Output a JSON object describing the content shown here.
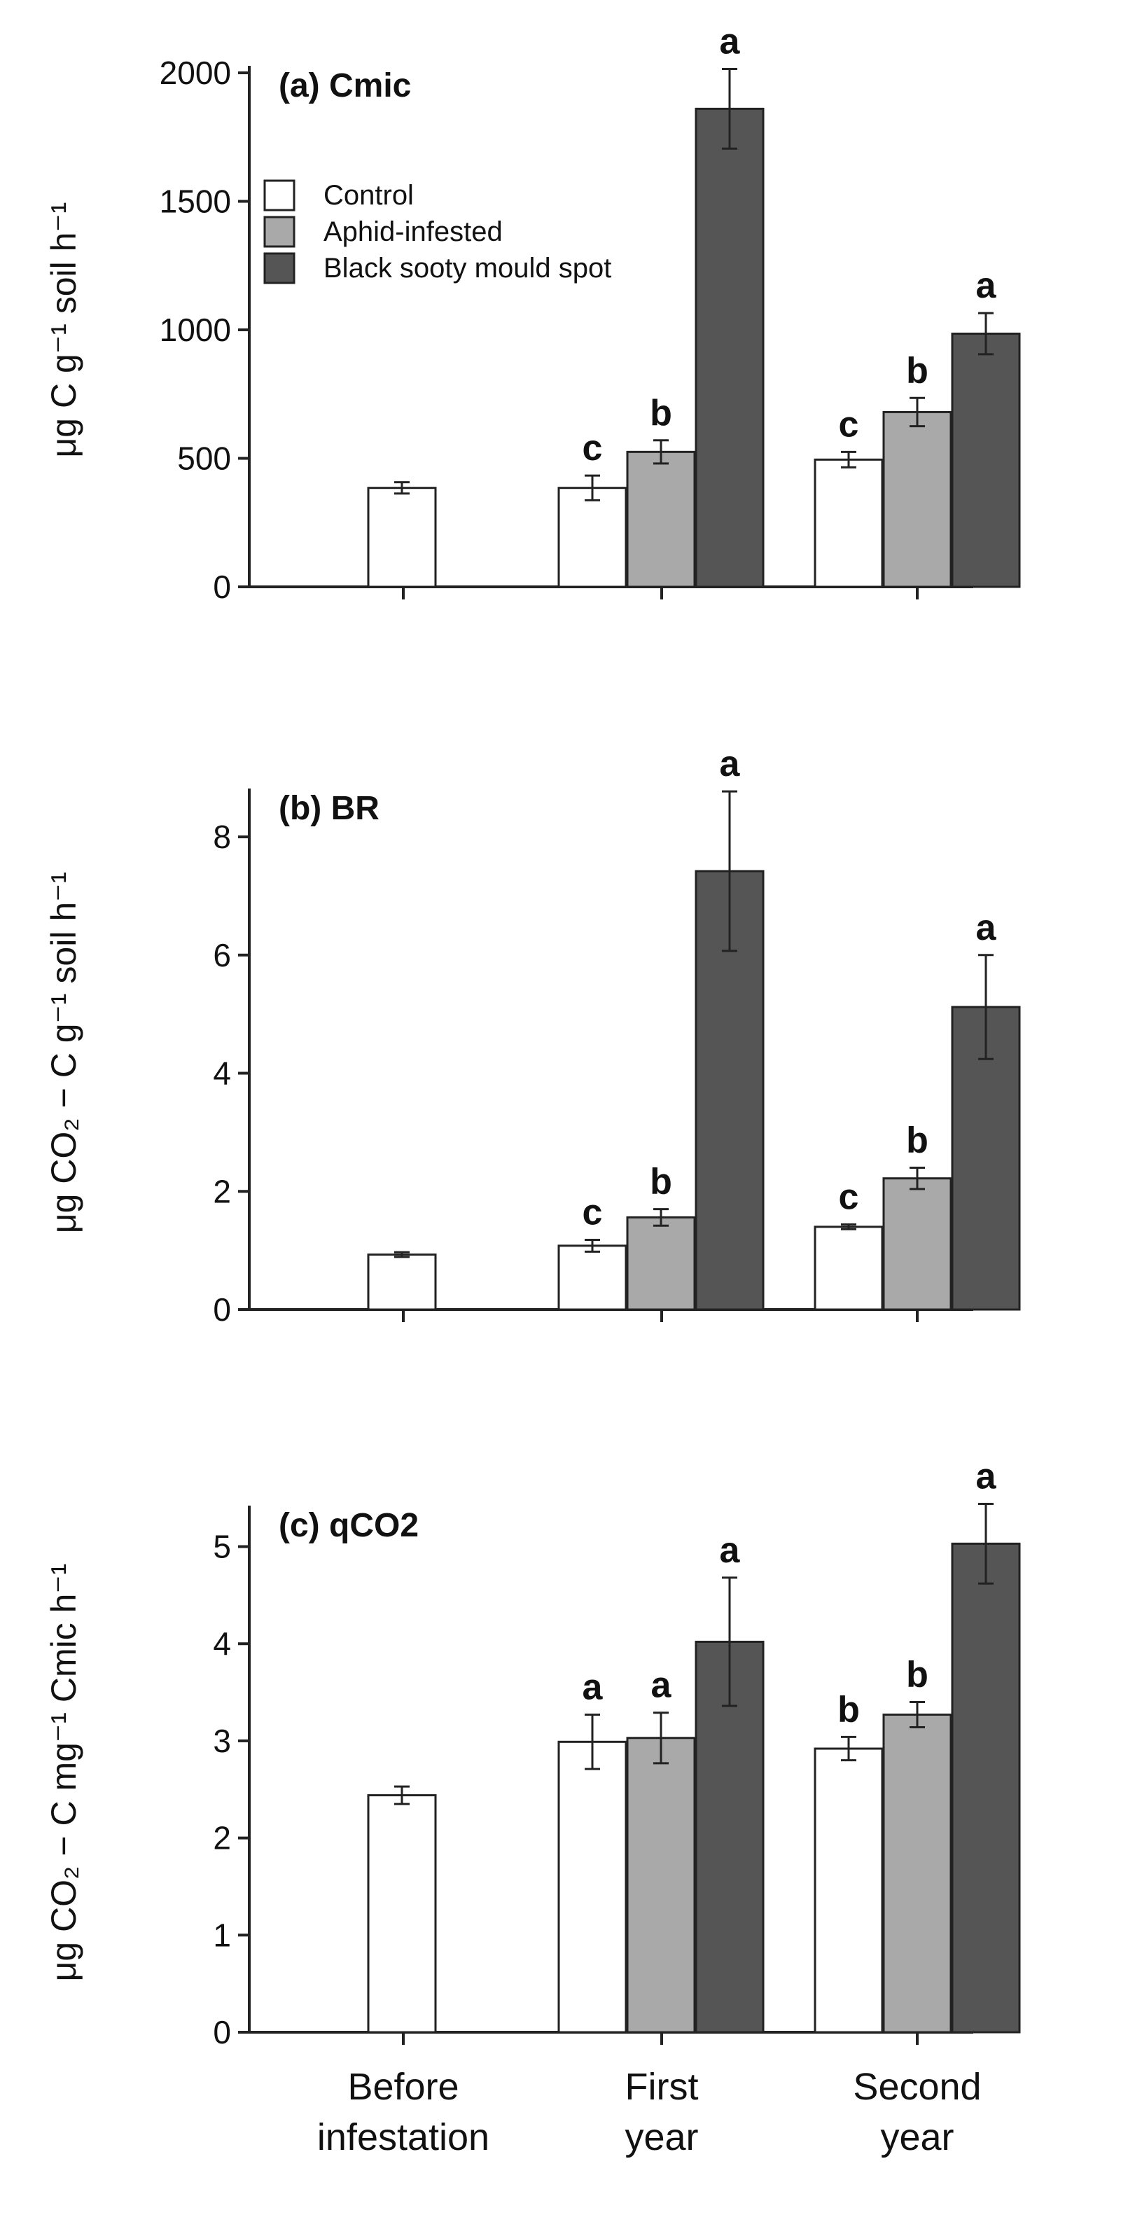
{
  "chart_data": [
    {
      "type": "bar",
      "title": "(a) Cmic",
      "ylabel": "μg C g⁻¹ soil h⁻¹",
      "ylim": [
        0,
        2000
      ],
      "yticks": [
        0,
        500,
        1000,
        1500,
        2000
      ],
      "categories": [
        "Before infestation",
        "First year",
        "Second year"
      ],
      "series": [
        {
          "name": "Control",
          "values": [
            385,
            385,
            495
          ],
          "errors": [
            22,
            48,
            30
          ],
          "letters": [
            "",
            "c",
            "c"
          ]
        },
        {
          "name": "Aphid-infested",
          "values": [
            null,
            525,
            680
          ],
          "errors": [
            null,
            45,
            55
          ],
          "letters": [
            "",
            "b",
            "b"
          ]
        },
        {
          "name": "Black sooty mould spot",
          "values": [
            null,
            1860,
            985
          ],
          "errors": [
            null,
            155,
            80
          ],
          "letters": [
            "",
            "a",
            "a"
          ]
        }
      ]
    },
    {
      "type": "bar",
      "title": "(b) BR",
      "ylabel": "μg CO₂ − C g⁻¹ soil h⁻¹",
      "ylim": [
        0,
        8.7
      ],
      "yticks": [
        0,
        2,
        4,
        6,
        8
      ],
      "categories": [
        "Before infestation",
        "First year",
        "Second year"
      ],
      "series": [
        {
          "name": "Control",
          "values": [
            0.93,
            1.08,
            1.4
          ],
          "errors": [
            0.04,
            0.1,
            0.04
          ],
          "letters": [
            "",
            "c",
            "c"
          ]
        },
        {
          "name": "Aphid-infested",
          "values": [
            null,
            1.56,
            2.22
          ],
          "errors": [
            null,
            0.14,
            0.18
          ],
          "letters": [
            "",
            "b",
            "b"
          ]
        },
        {
          "name": "Black sooty mould spot",
          "values": [
            null,
            7.42,
            5.12
          ],
          "errors": [
            null,
            1.35,
            0.88
          ],
          "letters": [
            "",
            "a",
            "a"
          ]
        }
      ]
    },
    {
      "type": "bar",
      "title": "(c) qCO2",
      "ylabel": "μg CO₂ − C mg⁻¹ Cmic h⁻¹",
      "ylim": [
        0,
        5.35
      ],
      "yticks": [
        0,
        1,
        2,
        3,
        4,
        5
      ],
      "categories": [
        "Before infestation",
        "First year",
        "Second year"
      ],
      "series": [
        {
          "name": "Control",
          "values": [
            2.44,
            2.99,
            2.92
          ],
          "errors": [
            0.09,
            0.28,
            0.12
          ],
          "letters": [
            "",
            "a",
            "b"
          ]
        },
        {
          "name": "Aphid-infested",
          "values": [
            null,
            3.03,
            3.27
          ],
          "errors": [
            null,
            0.26,
            0.13
          ],
          "letters": [
            "",
            "a",
            "b"
          ]
        },
        {
          "name": "Black sooty mould spot",
          "values": [
            null,
            4.02,
            5.03
          ],
          "errors": [
            null,
            0.66,
            0.41
          ],
          "letters": [
            "",
            "a",
            "a"
          ]
        }
      ]
    }
  ],
  "legend": {
    "items": [
      {
        "label": "Control",
        "color": "#ffffff"
      },
      {
        "label": "Aphid-infested",
        "color": "#a9a9a9"
      },
      {
        "label": "Black sooty mould spot",
        "color": "#555555"
      }
    ]
  },
  "x_labels": [
    {
      "line1": "Before",
      "line2": "infestation"
    },
    {
      "line1": "First",
      "line2": "year"
    },
    {
      "line1": "Second",
      "line2": "year"
    }
  ]
}
